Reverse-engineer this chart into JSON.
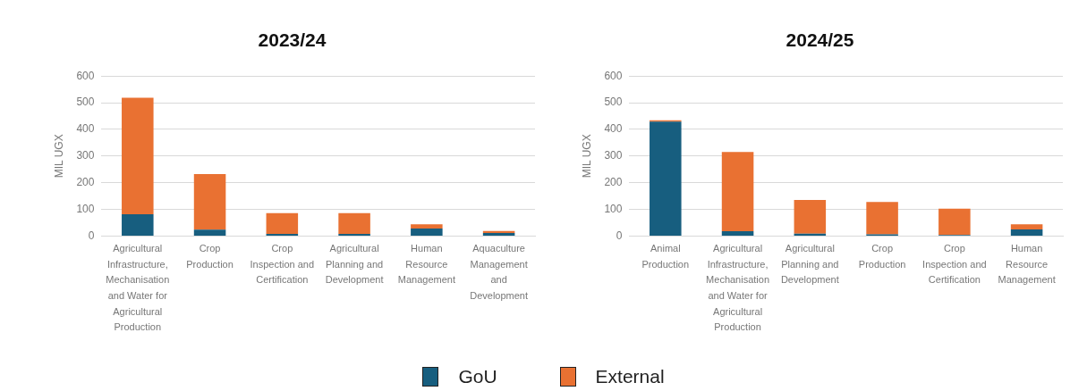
{
  "chart_data": [
    {
      "type": "bar",
      "title": "2023/24",
      "ylabel": "MIL UGX",
      "stacked": true,
      "grid": "y",
      "legend": "bottom",
      "categories": [
        "Agricultural Infrastructure, Mechanisation and Water for Agricultural Production",
        "Crop Production",
        "Crop Inspection and Certification",
        "Agricultural Planning and Development",
        "Human Resource Management",
        "Aquaculture Management and Development"
      ],
      "ylim": [
        0,
        600
      ],
      "yticks": [
        0,
        100,
        200,
        300,
        400,
        500,
        600
      ],
      "series": [
        {
          "name": "GoU",
          "color": "#175e7f",
          "values": [
            82,
            24,
            8,
            8,
            28,
            11
          ]
        },
        {
          "name": "External",
          "color": "#e97132",
          "values": [
            437,
            208,
            78,
            78,
            16,
            8
          ]
        }
      ]
    },
    {
      "type": "bar",
      "title": "2024/25",
      "ylabel": "MIL UGX",
      "stacked": true,
      "grid": "y",
      "categories": [
        "Animal Production",
        "Agricultural Infrastructure, Mechanisation and Water for Agricultural Production",
        "Agricultural Planning and Development",
        "Crop Production",
        "Crop Inspection and Certification",
        "Human Resource Management"
      ],
      "ylim": [
        0,
        600
      ],
      "yticks": [
        0,
        100,
        200,
        300,
        400,
        500,
        600
      ],
      "series": [
        {
          "color": "#175e7f",
          "values": [
            429,
            18,
            9,
            6,
            4,
            25
          ]
        },
        {
          "color": "#e97132",
          "values": [
            5,
            297,
            126,
            122,
            99,
            19
          ]
        }
      ]
    }
  ]
}
